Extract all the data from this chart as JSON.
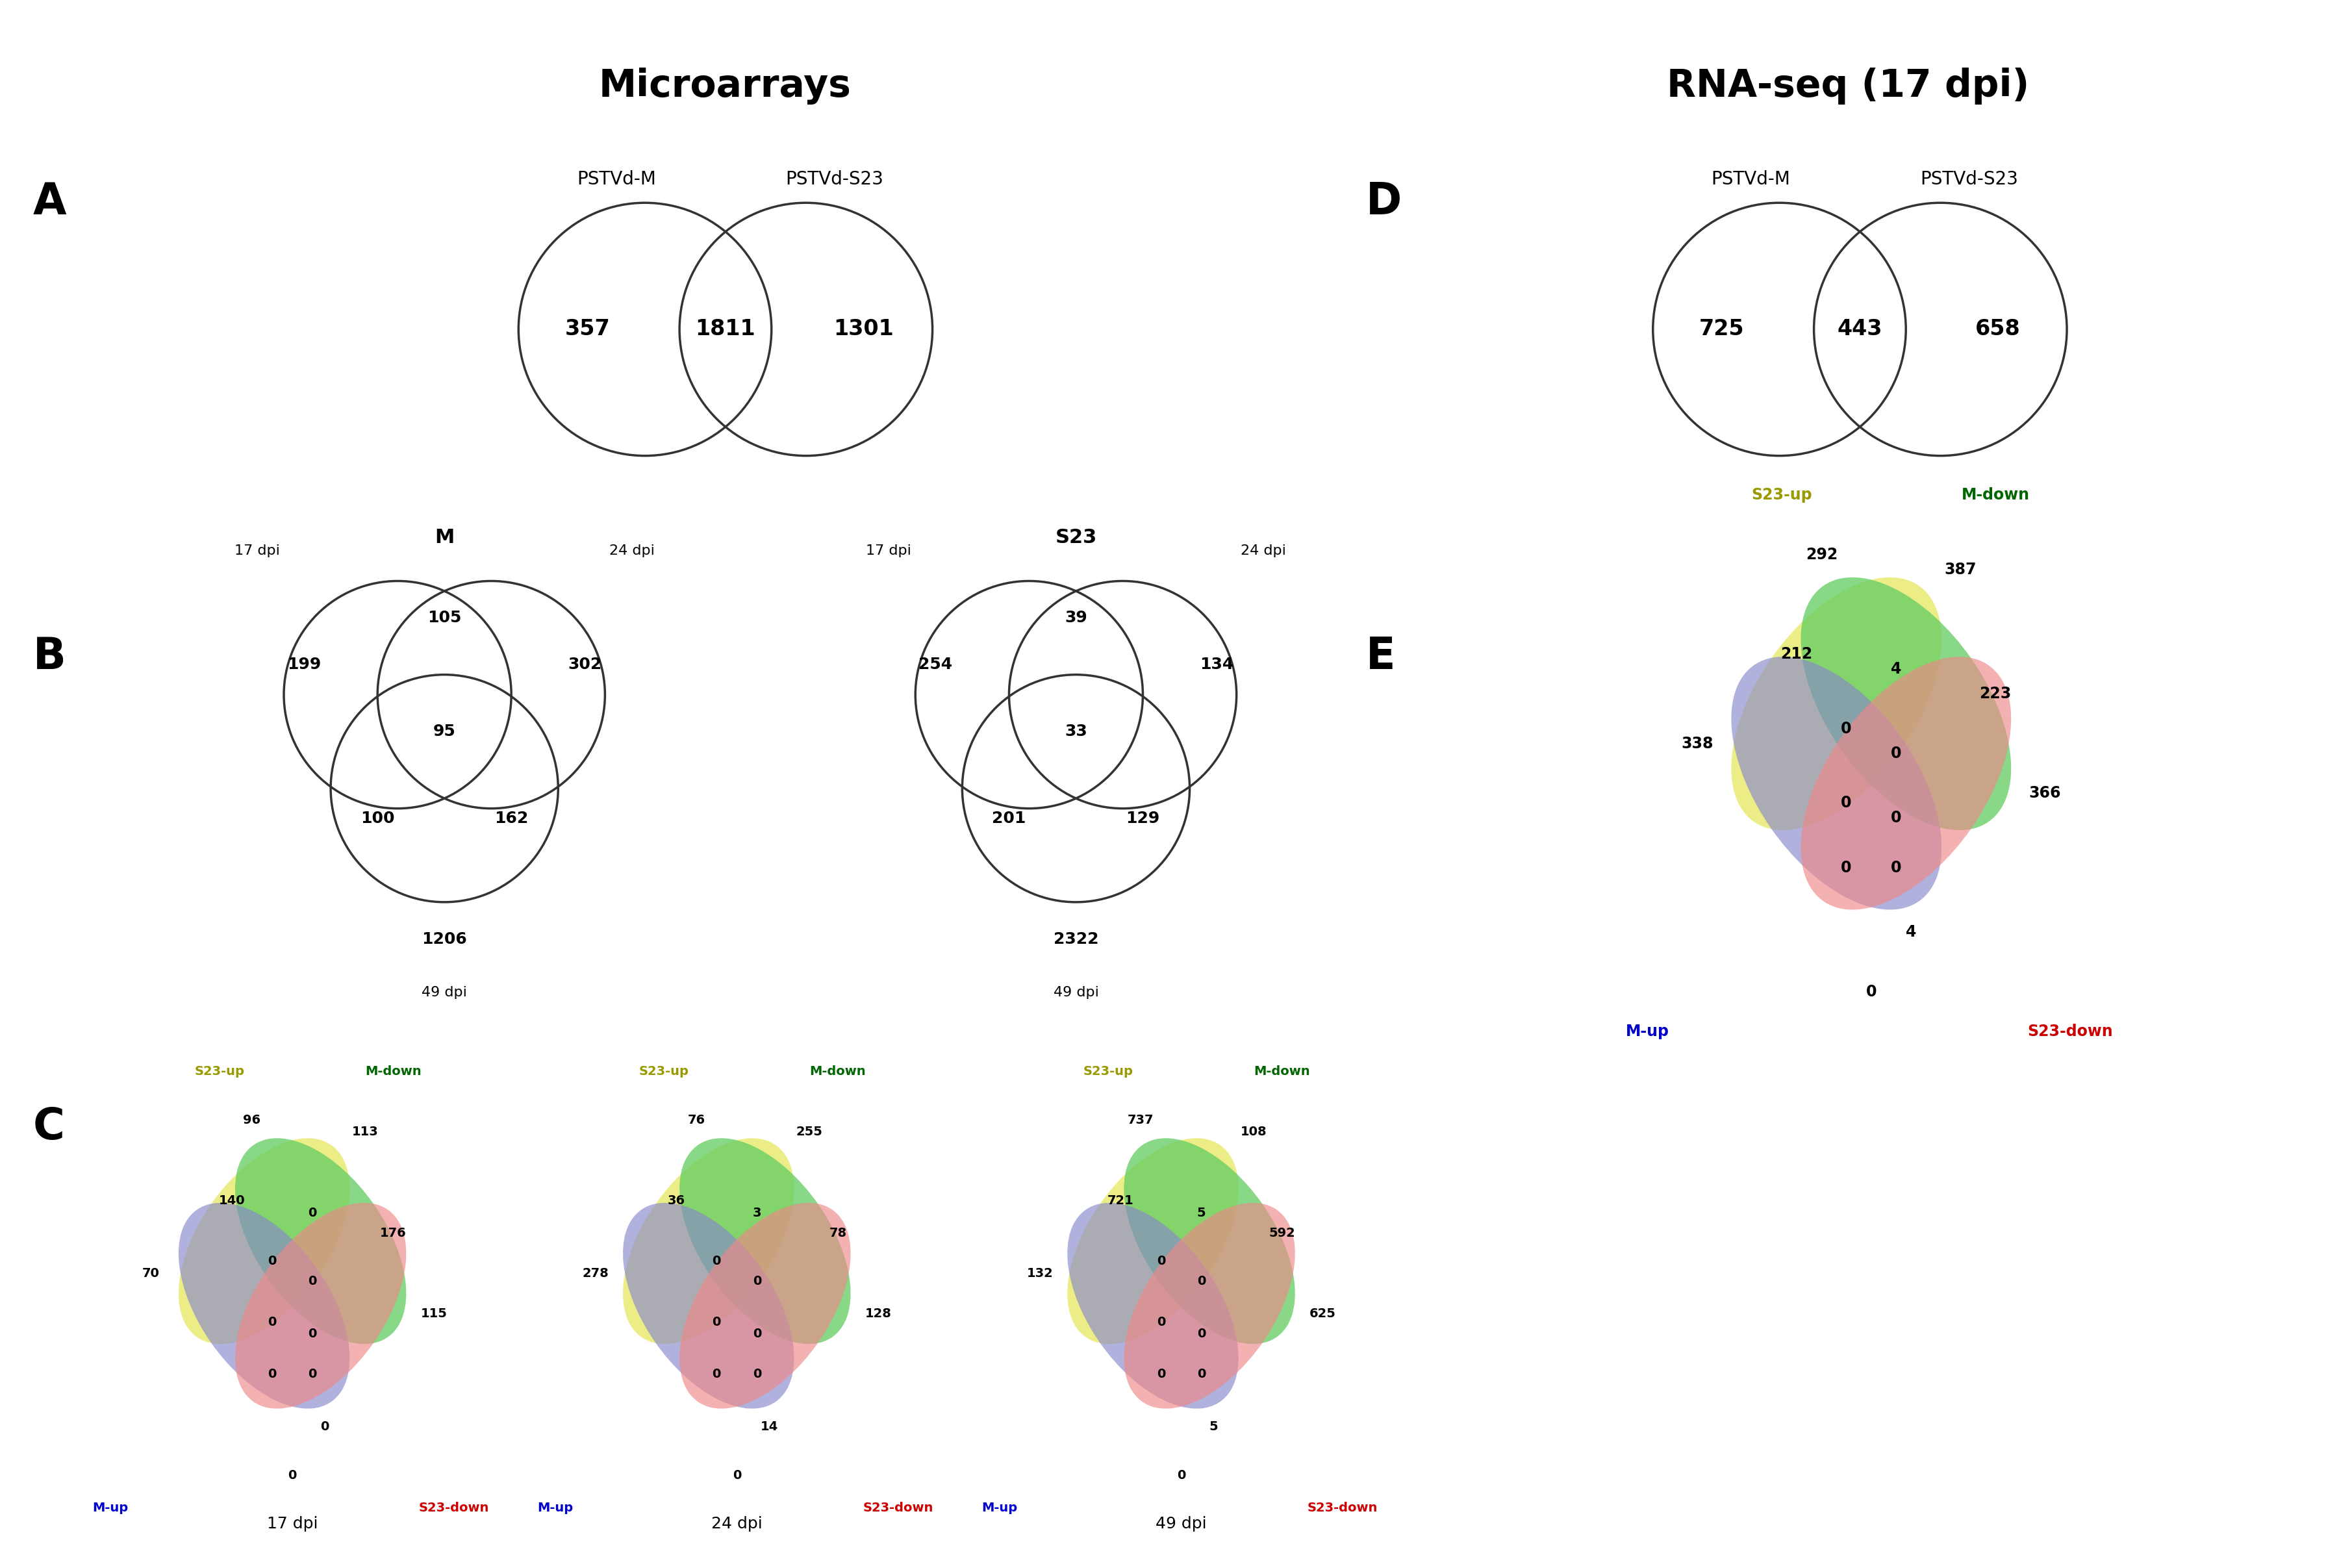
{
  "title_microarrays": "Microarrays",
  "title_rnaseq": "RNA-seq (17 dpi)",
  "panel_A": {
    "label": "A",
    "circle1_label": "PSTVd-M",
    "circle2_label": "PSTVd-S23",
    "val_left": "357",
    "val_center": "1811",
    "val_right": "1301"
  },
  "panel_B_M": {
    "label": "B",
    "title": "M",
    "label1": "17 dpi",
    "label2": "24 dpi",
    "label3": "49 dpi",
    "val_top_left": "199",
    "val_top_center": "105",
    "val_top_right": "302",
    "val_mid_center": "95",
    "val_mid_left": "100",
    "val_mid_right": "162",
    "val_bottom": "1206"
  },
  "panel_B_S23": {
    "title": "S23",
    "label1": "17 dpi",
    "label2": "24 dpi",
    "label3": "49 dpi",
    "val_top_left": "254",
    "val_top_center": "39",
    "val_top_right": "134",
    "val_mid_center": "33",
    "val_mid_left": "201",
    "val_mid_right": "129",
    "val_bottom": "2322"
  },
  "panel_D": {
    "label": "D",
    "circle1_label": "PSTVd-M",
    "circle2_label": "PSTVd-S23",
    "val_left": "725",
    "val_center": "443",
    "val_right": "658"
  },
  "panel_E": {
    "label": "E",
    "label_S23up": "S23-up",
    "label_Mdown": "M-down",
    "label_Mup": "M-up",
    "label_S23down": "S23-down",
    "label_S23up_color": "#999900",
    "label_Mdown_color": "#006600",
    "label_Mup_color": "#0000cc",
    "label_S23down_color": "#cc0000",
    "values": [
      "292",
      "387",
      "212",
      "4",
      "223",
      "338",
      "0",
      "0",
      "366",
      "0",
      "0",
      "0",
      "0",
      "4",
      "0"
    ]
  },
  "panel_C_17dpi": {
    "label_S23up": "S23-up",
    "label_Mdown": "M-down",
    "label_Mup": "M-up",
    "label_S23down": "S23-down",
    "values": [
      "96",
      "113",
      "140",
      "0",
      "176",
      "70",
      "0",
      "0",
      "115",
      "0",
      "0",
      "0",
      "0",
      "0",
      "0"
    ],
    "dpi_label": "17 dpi"
  },
  "panel_C_24dpi": {
    "label_S23up": "S23-up",
    "label_Mdown": "M-down",
    "label_Mup": "M-up",
    "label_S23down": "S23-down",
    "values": [
      "76",
      "255",
      "36",
      "3",
      "78",
      "278",
      "0",
      "0",
      "128",
      "0",
      "0",
      "0",
      "0",
      "14",
      "0"
    ],
    "dpi_label": "24 dpi"
  },
  "panel_C_49dpi": {
    "label_S23up": "S23-up",
    "label_Mdown": "M-down",
    "label_Mup": "M-up",
    "label_S23down": "S23-down",
    "values": [
      "737",
      "108",
      "721",
      "5",
      "592",
      "132",
      "0",
      "0",
      "625",
      "0",
      "0",
      "0",
      "0",
      "5",
      "0"
    ],
    "dpi_label": "49 dpi"
  },
  "bg_color": "#ffffff",
  "circle_color": "#333333",
  "venn4_colors": [
    "#e8e860",
    "#60cc60",
    "#8888cc",
    "#ee8888"
  ],
  "venn4_alphas": [
    0.75,
    0.75,
    0.65,
    0.65
  ]
}
